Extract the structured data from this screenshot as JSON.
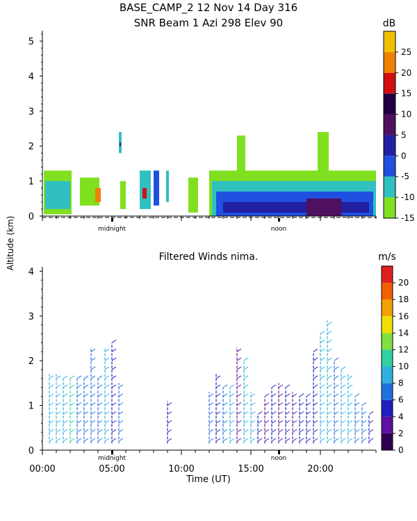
{
  "chart_data": [
    {
      "type": "heatmap",
      "title_line1": "BASE_CAMP_2   12 Nov 14 Day 316",
      "title_line2": "SNR Beam 1 Azi 298 Elev 90",
      "ylabel": "Altitude (km)",
      "ylim": [
        0,
        5.3
      ],
      "yticks": [
        "0",
        "1",
        "2",
        "3",
        "4",
        "5"
      ],
      "xlim_hours": [
        0,
        24
      ],
      "markers": [
        {
          "label": "midnight",
          "hour": 5
        },
        {
          "label": "noon",
          "hour": 17
        }
      ],
      "colorbar": {
        "unit": "dB",
        "bounds": [
          -15,
          30
        ],
        "ticks": [
          "25",
          "20",
          "15",
          "10",
          "5",
          "0",
          "-5",
          "-10",
          "-15"
        ],
        "tick_values": [
          25,
          20,
          15,
          10,
          5,
          0,
          -5,
          -10,
          -15
        ],
        "colors": [
          "#80e020",
          "#30c0c0",
          "#2050e0",
          "#2020a0",
          "#501060",
          "#200040",
          "#d01010",
          "#f08000",
          "#f0c000"
        ],
        "color_bounds": [
          -15,
          -10,
          -5,
          0,
          5,
          10,
          15,
          20,
          25,
          30
        ]
      },
      "regions": [
        {
          "t0": 0.1,
          "t1": 2.1,
          "z0": 0.05,
          "z1": 1.3,
          "db": -13
        },
        {
          "t0": 0.2,
          "t1": 2.0,
          "z0": 0.2,
          "z1": 1.0,
          "db": -7
        },
        {
          "t0": 2.7,
          "t1": 4.1,
          "z0": 0.3,
          "z1": 1.1,
          "db": -11
        },
        {
          "t0": 3.8,
          "t1": 4.2,
          "z0": 0.4,
          "z1": 0.8,
          "db": 20
        },
        {
          "t0": 5.5,
          "t1": 5.7,
          "z0": 1.8,
          "z1": 2.4,
          "db": -10
        },
        {
          "t0": 5.55,
          "t1": 5.65,
          "z0": 2.0,
          "z1": 2.1,
          "db": 5
        },
        {
          "t0": 5.6,
          "t1": 6.0,
          "z0": 0.2,
          "z1": 1.0,
          "db": -12
        },
        {
          "t0": 7.0,
          "t1": 7.8,
          "z0": 0.2,
          "z1": 1.3,
          "db": -8
        },
        {
          "t0": 7.2,
          "t1": 7.5,
          "z0": 0.5,
          "z1": 0.8,
          "db": 18
        },
        {
          "t0": 8.0,
          "t1": 8.4,
          "z0": 0.3,
          "z1": 1.3,
          "db": -5
        },
        {
          "t0": 8.9,
          "t1": 9.1,
          "z0": 0.4,
          "z1": 1.3,
          "db": -8
        },
        {
          "t0": 10.5,
          "t1": 11.2,
          "z0": 0.1,
          "z1": 1.1,
          "db": -12
        },
        {
          "t0": 12.0,
          "t1": 24.0,
          "z0": 0.0,
          "z1": 1.3,
          "db": -11
        },
        {
          "t0": 12.2,
          "t1": 24.0,
          "z0": 0.0,
          "z1": 1.0,
          "db": -6
        },
        {
          "t0": 12.5,
          "t1": 23.8,
          "z0": 0.0,
          "z1": 0.7,
          "db": -1
        },
        {
          "t0": 13.0,
          "t1": 23.5,
          "z0": 0.1,
          "z1": 0.4,
          "db": 3
        },
        {
          "t0": 14.0,
          "t1": 14.6,
          "z0": 1.2,
          "z1": 2.3,
          "db": -12
        },
        {
          "t0": 19.8,
          "t1": 20.6,
          "z0": 1.3,
          "z1": 2.4,
          "db": -13
        },
        {
          "t0": 19.0,
          "t1": 21.5,
          "z0": 0.0,
          "z1": 0.5,
          "db": 7
        }
      ]
    },
    {
      "type": "scatter",
      "title": "Filtered Winds nima.",
      "ylim": [
        0,
        4.1
      ],
      "yticks": [
        "0",
        "1",
        "2",
        "3",
        "4"
      ],
      "xlim_hours": [
        0,
        24
      ],
      "xticks": [
        "00:00",
        "05:00",
        "10:00",
        "15:00",
        "20:00"
      ],
      "xtick_hours": [
        0,
        5,
        10,
        15,
        20
      ],
      "xlabel": "Time (UT)",
      "markers": [
        {
          "label": "midnight",
          "hour": 5
        },
        {
          "label": "noon",
          "hour": 17
        }
      ],
      "colorbar": {
        "unit": "m/s",
        "bounds": [
          0,
          22
        ],
        "ticks": [
          "20",
          "18",
          "16",
          "14",
          "12",
          "10",
          "8",
          "6",
          "4",
          "2",
          "0"
        ],
        "tick_values": [
          20,
          18,
          16,
          14,
          12,
          10,
          8,
          6,
          4,
          2,
          0
        ],
        "colors": [
          "#300050",
          "#6010a0",
          "#2020c0",
          "#2070e0",
          "#30b0e0",
          "#30d0a0",
          "#80e040",
          "#f0e000",
          "#f0a000",
          "#f06000",
          "#e02020"
        ],
        "color_bounds": [
          0,
          2,
          4,
          6,
          8,
          10,
          12,
          14,
          16,
          18,
          20,
          22
        ]
      },
      "profiles": [
        {
          "hour": 0.5,
          "top": 1.7,
          "speed": 8
        },
        {
          "hour": 1.0,
          "top": 1.7,
          "speed": 9
        },
        {
          "hour": 1.5,
          "top": 1.6,
          "speed": 8
        },
        {
          "hour": 2.0,
          "top": 1.6,
          "speed": 10
        },
        {
          "hour": 2.5,
          "top": 1.6,
          "speed": 7
        },
        {
          "hour": 3.0,
          "top": 1.6,
          "speed": 7
        },
        {
          "hour": 3.5,
          "top": 2.3,
          "speed": 7
        },
        {
          "hour": 4.0,
          "top": 1.6,
          "speed": 7
        },
        {
          "hour": 4.5,
          "top": 2.3,
          "speed": 9
        },
        {
          "hour": 5.0,
          "top": 2.4,
          "speed": 5
        },
        {
          "hour": 5.5,
          "top": 1.5,
          "speed": 7
        },
        {
          "hour": 9.0,
          "top": 1.1,
          "speed": 4
        },
        {
          "hour": 12.0,
          "top": 1.3,
          "speed": 6
        },
        {
          "hour": 12.5,
          "top": 1.7,
          "speed": 5
        },
        {
          "hour": 13.0,
          "top": 1.4,
          "speed": 7
        },
        {
          "hour": 13.5,
          "top": 1.4,
          "speed": 8
        },
        {
          "hour": 14.0,
          "top": 2.3,
          "speed": 3
        },
        {
          "hour": 14.5,
          "top": 2.0,
          "speed": 8
        },
        {
          "hour": 15.0,
          "top": 1.3,
          "speed": 9
        },
        {
          "hour": 15.5,
          "top": 0.8,
          "speed": 4
        },
        {
          "hour": 16.0,
          "top": 1.2,
          "speed": 3
        },
        {
          "hour": 16.5,
          "top": 1.4,
          "speed": 5
        },
        {
          "hour": 17.0,
          "top": 1.5,
          "speed": 3
        },
        {
          "hour": 17.5,
          "top": 1.4,
          "speed": 4
        },
        {
          "hour": 18.0,
          "top": 1.3,
          "speed": 3
        },
        {
          "hour": 18.5,
          "top": 1.2,
          "speed": 4
        },
        {
          "hour": 19.0,
          "top": 1.2,
          "speed": 5
        },
        {
          "hour": 19.5,
          "top": 2.2,
          "speed": 4
        },
        {
          "hour": 20.0,
          "top": 2.6,
          "speed": 8
        },
        {
          "hour": 20.5,
          "top": 2.9,
          "speed": 9
        },
        {
          "hour": 21.0,
          "top": 2.0,
          "speed": 6
        },
        {
          "hour": 21.5,
          "top": 1.8,
          "speed": 8
        },
        {
          "hour": 22.0,
          "top": 1.7,
          "speed": 9
        },
        {
          "hour": 22.5,
          "top": 1.2,
          "speed": 6
        },
        {
          "hour": 23.0,
          "top": 1.0,
          "speed": 7
        },
        {
          "hour": 23.5,
          "top": 0.8,
          "speed": 5
        }
      ]
    }
  ],
  "shared": {
    "ylabel": "Altitude (km)"
  }
}
